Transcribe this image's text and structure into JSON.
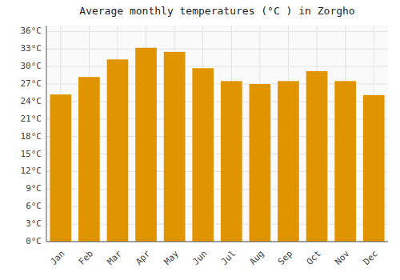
{
  "chart_data": {
    "type": "bar",
    "title": "Average monthly temperatures (°C ) in Zorgho",
    "categories": [
      "Jan",
      "Feb",
      "Mar",
      "Apr",
      "May",
      "Jun",
      "Jul",
      "Aug",
      "Sep",
      "Oct",
      "Nov",
      "Dec"
    ],
    "values": [
      25.2,
      28.2,
      31.2,
      33.2,
      32.5,
      29.7,
      27.5,
      27.0,
      27.5,
      29.2,
      27.5,
      25.1
    ],
    "color": "#E09500",
    "ylim": [
      0,
      37
    ],
    "yticks": [
      {
        "value": 0,
        "label": "0°C"
      },
      {
        "value": 3,
        "label": "3°C"
      },
      {
        "value": 6,
        "label": "6°C"
      },
      {
        "value": 9,
        "label": "9°C"
      },
      {
        "value": 12,
        "label": "12°C"
      },
      {
        "value": 15,
        "label": "15°C"
      },
      {
        "value": 18,
        "label": "18°C"
      },
      {
        "value": 21,
        "label": "21°C"
      },
      {
        "value": 24,
        "label": "24°C"
      },
      {
        "value": 27,
        "label": "27°C"
      },
      {
        "value": 30,
        "label": "30°C"
      },
      {
        "value": 33,
        "label": "33°C"
      },
      {
        "value": 36,
        "label": "36°C"
      }
    ],
    "grid": true
  }
}
